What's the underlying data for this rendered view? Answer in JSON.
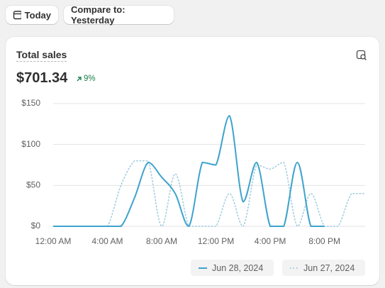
{
  "toolbar": {
    "date_button": "Today",
    "compare_button": "Compare to: Yesterday"
  },
  "card": {
    "title": "Total sales",
    "total": "$701.34",
    "change": "9%"
  },
  "chart_data": {
    "type": "line",
    "x": [
      0,
      1,
      2,
      3,
      4,
      5,
      6,
      7,
      8,
      9,
      10,
      11,
      12,
      13,
      14,
      15,
      16,
      17,
      18,
      19,
      20,
      21,
      22,
      23
    ],
    "xlim": [
      0,
      23
    ],
    "xticks": [
      {
        "value": 0,
        "label": "12:00 AM"
      },
      {
        "value": 4,
        "label": "4:00 AM"
      },
      {
        "value": 8,
        "label": "8:00 AM"
      },
      {
        "value": 12,
        "label": "12:00 PM"
      },
      {
        "value": 16,
        "label": "4:00 PM"
      },
      {
        "value": 20,
        "label": "8:00 PM"
      }
    ],
    "ylim": [
      0,
      150
    ],
    "yticks": [
      {
        "value": 0,
        "label": "$0"
      },
      {
        "value": 50,
        "label": "$50"
      },
      {
        "value": 100,
        "label": "$100"
      },
      {
        "value": 150,
        "label": "$150"
      }
    ],
    "grid": true,
    "series": [
      {
        "name": "Jun 28, 2024",
        "color": "#3ea3cc",
        "style": "solid",
        "values": [
          0,
          0,
          0,
          0,
          0,
          0,
          35,
          78,
          60,
          40,
          0,
          78,
          75,
          135,
          30,
          78,
          0,
          0,
          78,
          0,
          0,
          null,
          null,
          null
        ]
      },
      {
        "name": "Jun 27, 2024",
        "color": "#9fcbdd",
        "style": "dotted",
        "values": [
          0,
          0,
          0,
          0,
          0,
          50,
          80,
          80,
          0,
          64,
          0,
          0,
          0,
          40,
          0,
          75,
          70,
          78,
          0,
          40,
          0,
          0,
          40,
          40
        ]
      }
    ]
  }
}
